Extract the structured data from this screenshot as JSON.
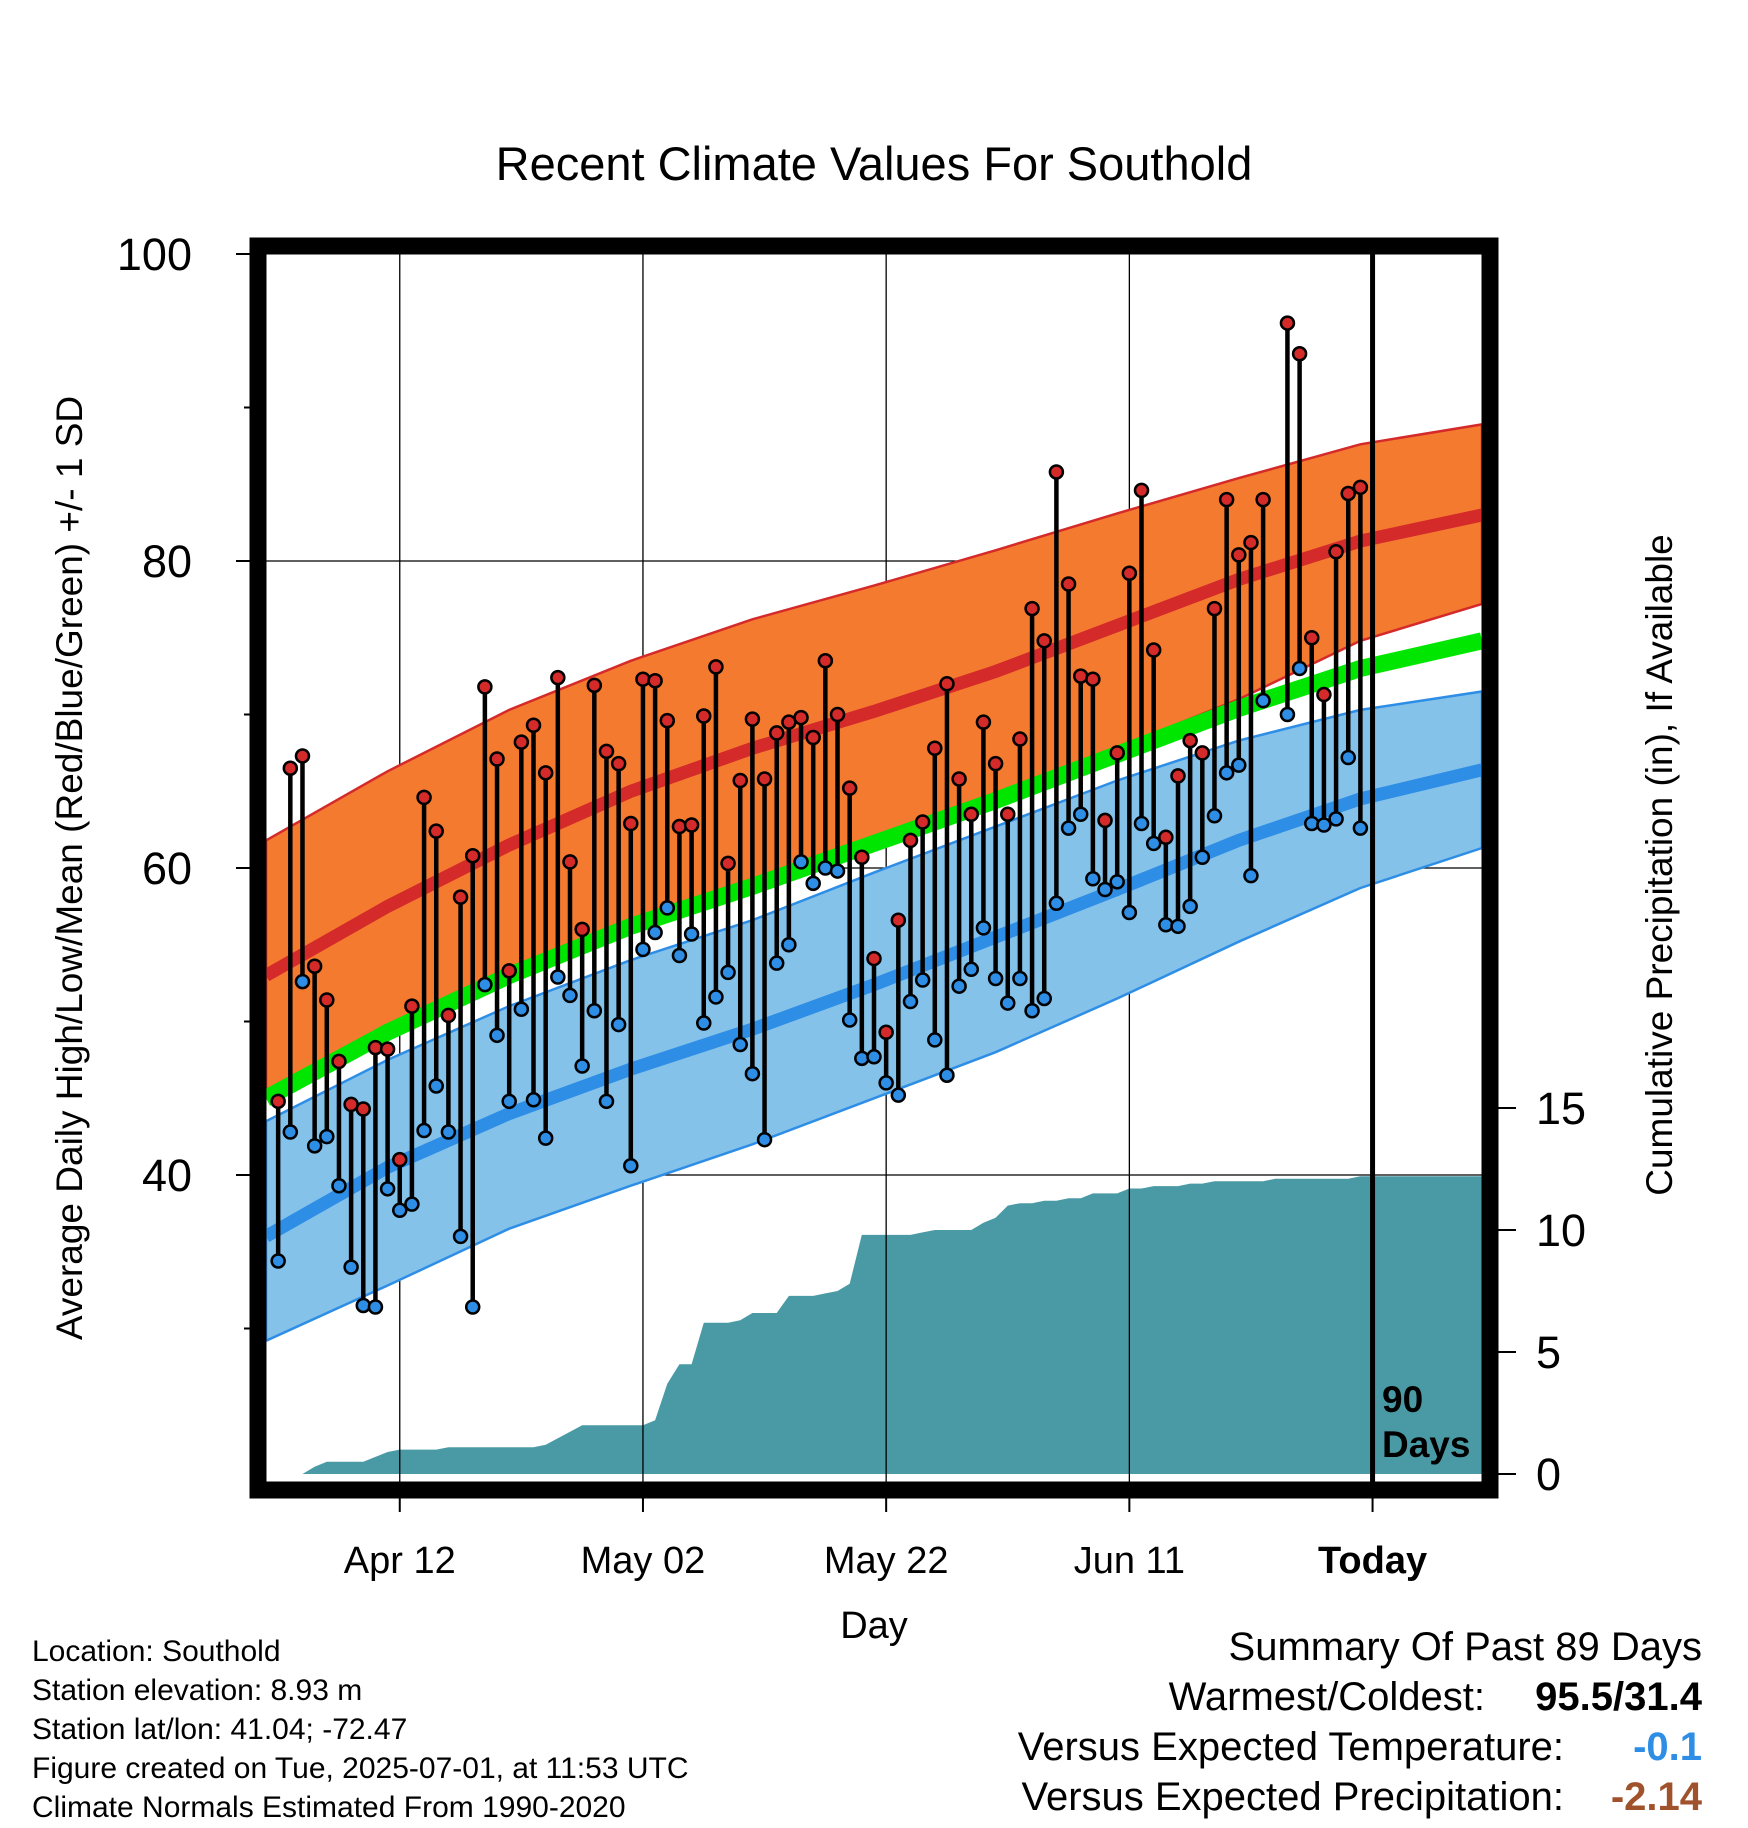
{
  "chart_data": {
    "type": "line",
    "title": "Recent Climate Values For Southold",
    "xlabel": "Day",
    "ylabel": "Average Daily High/Low/Mean (Red/Blue/Green) +/- 1 SD",
    "y2label": "Cumulative Precipitation (in), If Available",
    "ylim": [
      20,
      100
    ],
    "y2lim": [
      0,
      50
    ],
    "yticks": [
      40,
      60,
      80,
      100
    ],
    "y2ticks": [
      0,
      5,
      10,
      15
    ],
    "x_tick_labels": [
      "Apr 12",
      "May 02",
      "May 22",
      "Jun 11",
      "Today"
    ],
    "x_tick_days": [
      10,
      30,
      50,
      70,
      90
    ],
    "today_marker": {
      "day": 90,
      "label_line1": "90",
      "label_line2": "Days"
    },
    "x_range_days": [
      -1,
      99
    ],
    "normals": {
      "days": [
        -1,
        9,
        19,
        29,
        39,
        49,
        59,
        69,
        79,
        89,
        99
      ],
      "high_mean": [
        53.0,
        57.5,
        61.5,
        65.0,
        67.8,
        70.2,
        72.8,
        75.8,
        78.8,
        81.3,
        83.0
      ],
      "high_upper": [
        61.8,
        66.3,
        70.3,
        73.5,
        76.2,
        78.4,
        80.7,
        83.1,
        85.4,
        87.6,
        88.9
      ],
      "high_lower": [
        45.5,
        49.7,
        53.2,
        56.2,
        59.0,
        61.5,
        64.5,
        67.8,
        71.0,
        74.8,
        77.2
      ],
      "mean": [
        45.0,
        49.3,
        53.0,
        56.2,
        58.8,
        61.6,
        64.4,
        67.4,
        70.4,
        73.0,
        74.8
      ],
      "low_mean": [
        36.0,
        40.5,
        44.0,
        46.9,
        49.5,
        52.4,
        55.5,
        58.6,
        61.8,
        64.5,
        66.4
      ],
      "low_upper": [
        43.5,
        47.5,
        51.0,
        54.0,
        56.6,
        59.7,
        62.7,
        65.7,
        68.3,
        70.3,
        71.5
      ],
      "low_lower": [
        29.2,
        32.8,
        36.5,
        39.3,
        42.0,
        45.0,
        48.0,
        51.5,
        55.2,
        58.7,
        61.3
      ]
    },
    "daily_high": [
      44.8,
      66.5,
      67.3,
      53.6,
      51.4,
      47.4,
      44.6,
      44.3,
      48.3,
      48.2,
      41.0,
      51.0,
      64.6,
      62.4,
      50.4,
      58.1,
      60.8,
      71.8,
      67.1,
      53.3,
      68.2,
      69.3,
      66.2,
      72.4,
      60.4,
      56.0,
      71.9,
      67.6,
      66.8,
      62.9,
      72.3,
      72.2,
      69.6,
      62.7,
      62.8,
      69.9,
      73.1,
      60.3,
      65.7,
      69.7,
      65.8,
      68.8,
      69.5,
      69.8,
      68.5,
      73.5,
      70.0,
      65.2,
      60.7,
      54.1,
      49.3,
      56.6,
      61.8,
      63.0,
      67.8,
      72.0,
      65.8,
      63.5,
      69.5,
      66.8,
      63.5,
      68.4,
      76.9,
      74.8,
      85.8,
      78.5,
      72.5,
      72.3,
      63.1,
      67.5,
      79.2,
      84.6,
      74.2,
      62.0,
      66.0,
      68.3,
      67.5,
      76.9,
      84.0,
      80.4,
      81.2,
      84.0,
      null,
      95.5,
      93.5,
      75.0,
      71.3,
      80.6,
      84.4,
      84.8
    ],
    "daily_low": [
      34.4,
      42.8,
      52.6,
      41.9,
      42.5,
      39.3,
      34.0,
      31.5,
      31.4,
      39.1,
      37.7,
      38.1,
      42.9,
      45.8,
      42.8,
      36.0,
      31.4,
      52.4,
      49.1,
      44.8,
      50.8,
      44.9,
      42.4,
      52.9,
      51.7,
      47.1,
      50.7,
      44.8,
      49.8,
      40.6,
      54.7,
      55.8,
      57.4,
      54.3,
      55.7,
      49.9,
      51.6,
      53.2,
      48.5,
      46.6,
      42.3,
      53.8,
      55.0,
      60.4,
      59.0,
      60.0,
      59.8,
      50.1,
      47.6,
      47.7,
      46.0,
      45.2,
      51.3,
      52.7,
      48.8,
      46.5,
      52.3,
      53.4,
      56.1,
      52.8,
      51.2,
      52.8,
      50.7,
      51.5,
      57.7,
      62.6,
      63.5,
      59.3,
      58.6,
      59.1,
      57.1,
      62.9,
      61.6,
      56.3,
      56.2,
      57.5,
      60.7,
      63.4,
      66.2,
      66.7,
      59.5,
      70.9,
      null,
      70.0,
      73.0,
      62.9,
      62.8,
      63.2,
      67.2,
      62.6
    ],
    "precip_cum": {
      "days": [
        -1,
        2,
        3,
        4,
        5,
        6,
        7,
        8,
        9,
        10,
        11,
        12,
        13,
        14,
        20,
        21,
        22,
        25,
        26,
        27,
        28,
        29,
        30,
        31,
        32,
        33,
        34,
        35,
        36,
        37,
        38,
        39,
        40,
        41,
        42,
        43,
        44,
        45,
        46,
        47,
        48,
        49,
        50,
        51,
        52,
        53,
        54,
        55,
        56,
        57,
        58,
        59,
        60,
        61,
        62,
        63,
        64,
        65,
        66,
        67,
        68,
        69,
        70,
        71,
        72,
        73,
        74,
        75,
        76,
        77,
        78,
        79,
        80,
        81,
        82,
        83,
        84,
        85,
        86,
        87,
        88,
        89,
        90,
        91,
        92,
        93,
        94,
        95,
        96,
        97,
        98,
        99
      ],
      "values": [
        0,
        0,
        0.3,
        0.5,
        0.5,
        0.5,
        0.5,
        0.7,
        0.9,
        1.0,
        1.0,
        1.0,
        1.0,
        1.1,
        1.1,
        1.1,
        1.2,
        2.0,
        2.0,
        2.0,
        2.0,
        2.0,
        2.0,
        2.2,
        3.7,
        4.5,
        4.5,
        6.2,
        6.2,
        6.2,
        6.3,
        6.6,
        6.6,
        6.6,
        7.3,
        7.3,
        7.3,
        7.4,
        7.5,
        7.8,
        9.8,
        9.8,
        9.8,
        9.8,
        9.8,
        9.9,
        10.0,
        10.0,
        10.0,
        10.0,
        10.3,
        10.5,
        11.0,
        11.1,
        11.1,
        11.2,
        11.2,
        11.3,
        11.3,
        11.5,
        11.5,
        11.5,
        11.7,
        11.7,
        11.8,
        11.8,
        11.8,
        11.9,
        11.9,
        12.0,
        12.0,
        12.0,
        12.0,
        12.0,
        12.1,
        12.1,
        12.1,
        12.1,
        12.1,
        12.1,
        12.1,
        12.2,
        12.2,
        12.2,
        12.2,
        12.2,
        12.2,
        12.2,
        12.2,
        12.2,
        12.2,
        12.2
      ]
    }
  },
  "info": {
    "location": "Location: Southold",
    "elevation": "Station elevation: 8.93 m",
    "latlon": "Station lat/lon: 41.04; -72.47",
    "created": "Figure created on Tue, 2025-07-01, at 11:53 UTC",
    "normals": "Climate Normals Estimated From 1990-2020"
  },
  "summary": {
    "title": "Summary Of Past 89 Days",
    "warm_cold_label": "Warmest/Coldest:",
    "warm_cold_value": "95.5/31.4",
    "temp_label": "Versus Expected Temperature:",
    "temp_value": "-0.1",
    "temp_color": "#2e8ee6",
    "precip_label": "Versus Expected Precipitation:",
    "precip_value": "-2.14",
    "precip_color": "#a0522d"
  },
  "colors": {
    "high_band": "#f47a30",
    "high_line": "#d42a2a",
    "mean_line": "#00e600",
    "low_band": "#84c2ea",
    "low_line": "#2e8ee6",
    "precip": "#4a9aa5",
    "high_dot": "#d42a2a",
    "low_dot": "#2e8ee6"
  }
}
